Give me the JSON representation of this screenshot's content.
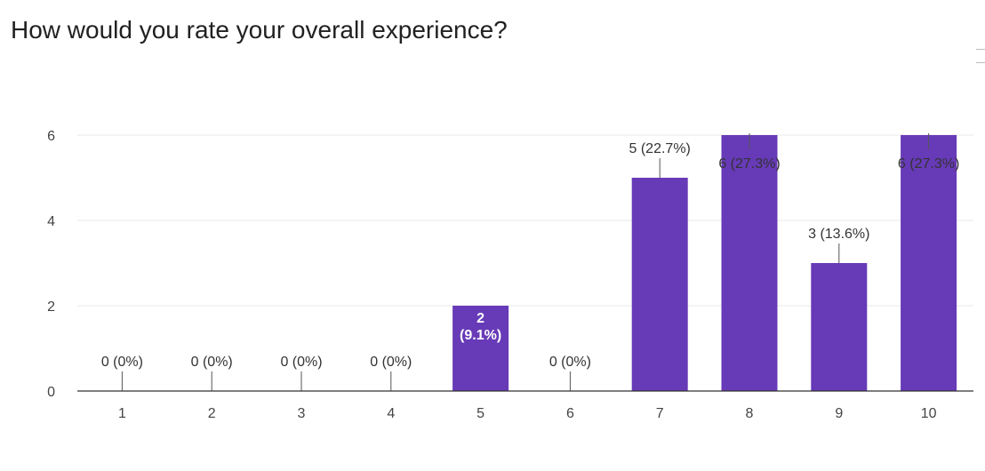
{
  "question": {
    "title": "How would you rate your overall experience?"
  },
  "chart_data": {
    "type": "bar",
    "title": "How would you rate your overall experience?",
    "xlabel": "",
    "ylabel": "",
    "categories": [
      "1",
      "2",
      "3",
      "4",
      "5",
      "6",
      "7",
      "8",
      "9",
      "10"
    ],
    "values": [
      0,
      0,
      0,
      0,
      2,
      0,
      5,
      6,
      3,
      6
    ],
    "data_labels": [
      "0 (0%)",
      "0 (0%)",
      "0 (0%)",
      "0 (0%)",
      "2 (9.1%)",
      "0 (0%)",
      "5 (22.7%)",
      "6 (27.3%)",
      "3 (13.6%)",
      "6 (27.3%)"
    ],
    "yticks": [
      "0",
      "2",
      "4",
      "6"
    ],
    "ylim": [
      0,
      6
    ],
    "grid": true,
    "legend": "none",
    "bar_color": "#673ab7"
  }
}
